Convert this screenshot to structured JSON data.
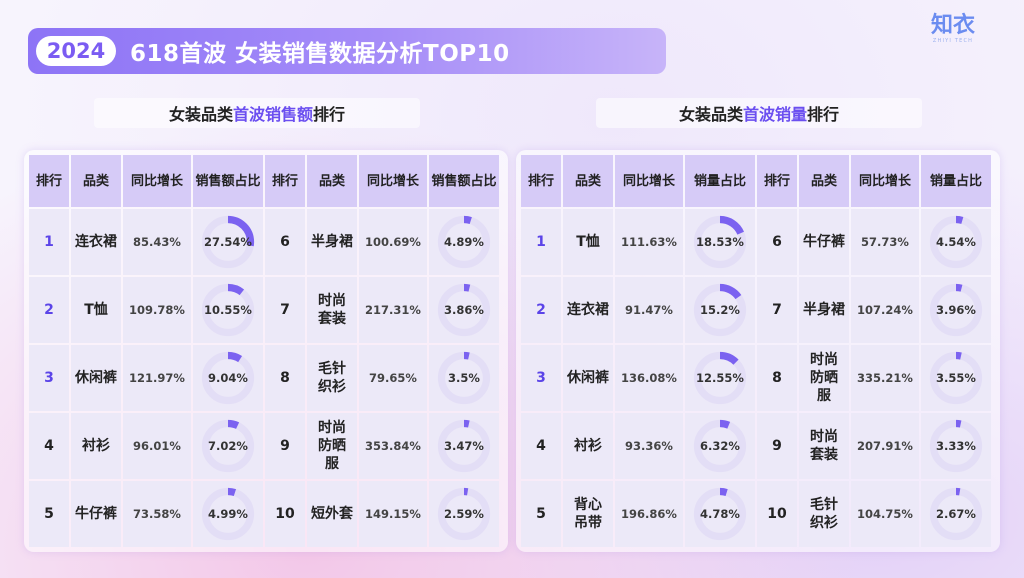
{
  "header": {
    "year": "2024",
    "title": "618首波 女装销售数据分析TOP10"
  },
  "logo": {
    "cn": "知衣",
    "en": "ZHIYI TECH"
  },
  "colors": {
    "accent": "#6b4ff0",
    "ring": "#7b62f0",
    "track": "#dcd6f4"
  },
  "left": {
    "subtitle_pre": "女装品类",
    "subtitle_hl": "首波销售额",
    "subtitle_post": "排行",
    "headers": [
      "排行",
      "品类",
      "同比增长",
      "销售额占比"
    ],
    "rows": [
      [
        {
          "rank": "1",
          "cat": "连衣裙",
          "growth": "85.43%",
          "share": "27.54%",
          "v": 27.54
        },
        {
          "rank": "6",
          "cat": "半身裙",
          "growth": "100.69%",
          "share": "4.89%",
          "v": 4.89
        }
      ],
      [
        {
          "rank": "2",
          "cat": "T恤",
          "growth": "109.78%",
          "share": "10.55%",
          "v": 10.55
        },
        {
          "rank": "7",
          "cat": "时尚套装",
          "growth": "217.31%",
          "share": "3.86%",
          "v": 3.86
        }
      ],
      [
        {
          "rank": "3",
          "cat": "休闲裤",
          "growth": "121.97%",
          "share": "9.04%",
          "v": 9.04
        },
        {
          "rank": "8",
          "cat": "毛针织衫",
          "growth": "79.65%",
          "share": "3.5%",
          "v": 3.5
        }
      ],
      [
        {
          "rank": "4",
          "cat": "衬衫",
          "growth": "96.01%",
          "share": "7.02%",
          "v": 7.02
        },
        {
          "rank": "9",
          "cat": "时尚防晒服",
          "growth": "353.84%",
          "share": "3.47%",
          "v": 3.47
        }
      ],
      [
        {
          "rank": "5",
          "cat": "牛仔裤",
          "growth": "73.58%",
          "share": "4.99%",
          "v": 4.99
        },
        {
          "rank": "10",
          "cat": "短外套",
          "growth": "149.15%",
          "share": "2.59%",
          "v": 2.59
        }
      ]
    ]
  },
  "right": {
    "subtitle_pre": "女装品类",
    "subtitle_hl": "首波销量",
    "subtitle_post": "排行",
    "headers": [
      "排行",
      "品类",
      "同比增长",
      "销量占比"
    ],
    "rows": [
      [
        {
          "rank": "1",
          "cat": "T恤",
          "growth": "111.63%",
          "share": "18.53%",
          "v": 18.53
        },
        {
          "rank": "6",
          "cat": "牛仔裤",
          "growth": "57.73%",
          "share": "4.54%",
          "v": 4.54
        }
      ],
      [
        {
          "rank": "2",
          "cat": "连衣裙",
          "growth": "91.47%",
          "share": "15.2%",
          "v": 15.2
        },
        {
          "rank": "7",
          "cat": "半身裙",
          "growth": "107.24%",
          "share": "3.96%",
          "v": 3.96
        }
      ],
      [
        {
          "rank": "3",
          "cat": "休闲裤",
          "growth": "136.08%",
          "share": "12.55%",
          "v": 12.55
        },
        {
          "rank": "8",
          "cat": "时尚防晒服",
          "growth": "335.21%",
          "share": "3.55%",
          "v": 3.55
        }
      ],
      [
        {
          "rank": "4",
          "cat": "衬衫",
          "growth": "93.36%",
          "share": "6.32%",
          "v": 6.32
        },
        {
          "rank": "9",
          "cat": "时尚套装",
          "growth": "207.91%",
          "share": "3.33%",
          "v": 3.33
        }
      ],
      [
        {
          "rank": "5",
          "cat": "背心吊带",
          "growth": "196.86%",
          "share": "4.78%",
          "v": 4.78
        },
        {
          "rank": "10",
          "cat": "毛针织衫",
          "growth": "104.75%",
          "share": "2.67%",
          "v": 2.67
        }
      ]
    ]
  }
}
